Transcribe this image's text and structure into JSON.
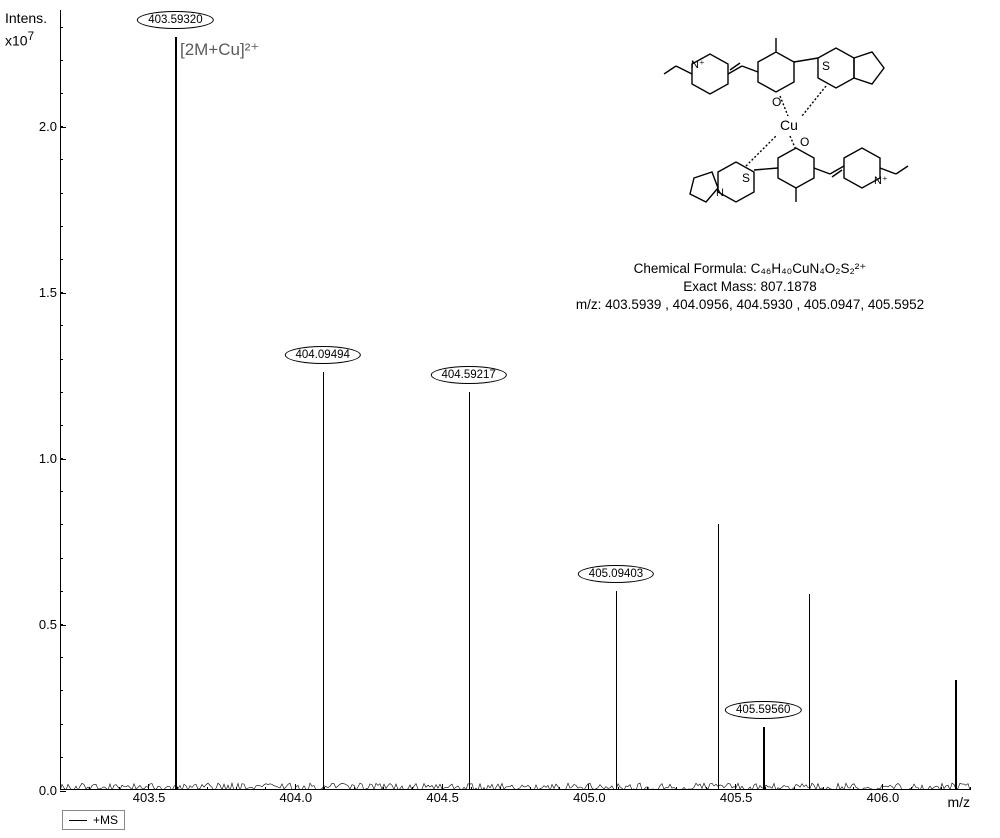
{
  "chart": {
    "type": "mass-spectrum",
    "y_label_top": "Intens.",
    "y_scale": "x10",
    "y_exponent": "7",
    "ylim": [
      0,
      2.35
    ],
    "yticks": [
      0.0,
      0.5,
      1.0,
      1.5,
      2.0
    ],
    "xlim": [
      403.2,
      406.3
    ],
    "xticks_major": [
      403.5,
      404.0,
      404.5,
      405.0,
      405.5,
      406.0
    ],
    "x_label": "m/z",
    "line_color": "#000000",
    "background_color": "#ffffff",
    "peaks": [
      {
        "mz": 403.5932,
        "intensity": 2.27,
        "label": "403.59320",
        "labeled": true
      },
      {
        "mz": 404.09494,
        "intensity": 1.26,
        "label": "404.09494",
        "labeled": true
      },
      {
        "mz": 404.59217,
        "intensity": 1.2,
        "label": "404.59217",
        "labeled": true
      },
      {
        "mz": 405.09403,
        "intensity": 0.6,
        "label": "405.09403",
        "labeled": true
      },
      {
        "mz": 405.44,
        "intensity": 0.8,
        "label": "",
        "labeled": false
      },
      {
        "mz": 405.5956,
        "intensity": 0.19,
        "label": "405.59560",
        "labeled": true
      },
      {
        "mz": 405.75,
        "intensity": 0.59,
        "label": "",
        "labeled": false
      },
      {
        "mz": 406.25,
        "intensity": 0.33,
        "label": "",
        "labeled": false
      }
    ],
    "annotation": "[2M+Cu]²⁺",
    "info": {
      "formula_prefix": "Chemical Formula: ",
      "formula": "C₄₆H₄₀CuN₄O₂S₂²⁺",
      "mass_label": "Exact Mass: ",
      "mass": "807.1878",
      "mz_label": "m/z: ",
      "mz_list": "403.5939 , 404.0956, 404.5930 , 405.0947, 405.5952"
    },
    "legend_text": "+MS"
  }
}
